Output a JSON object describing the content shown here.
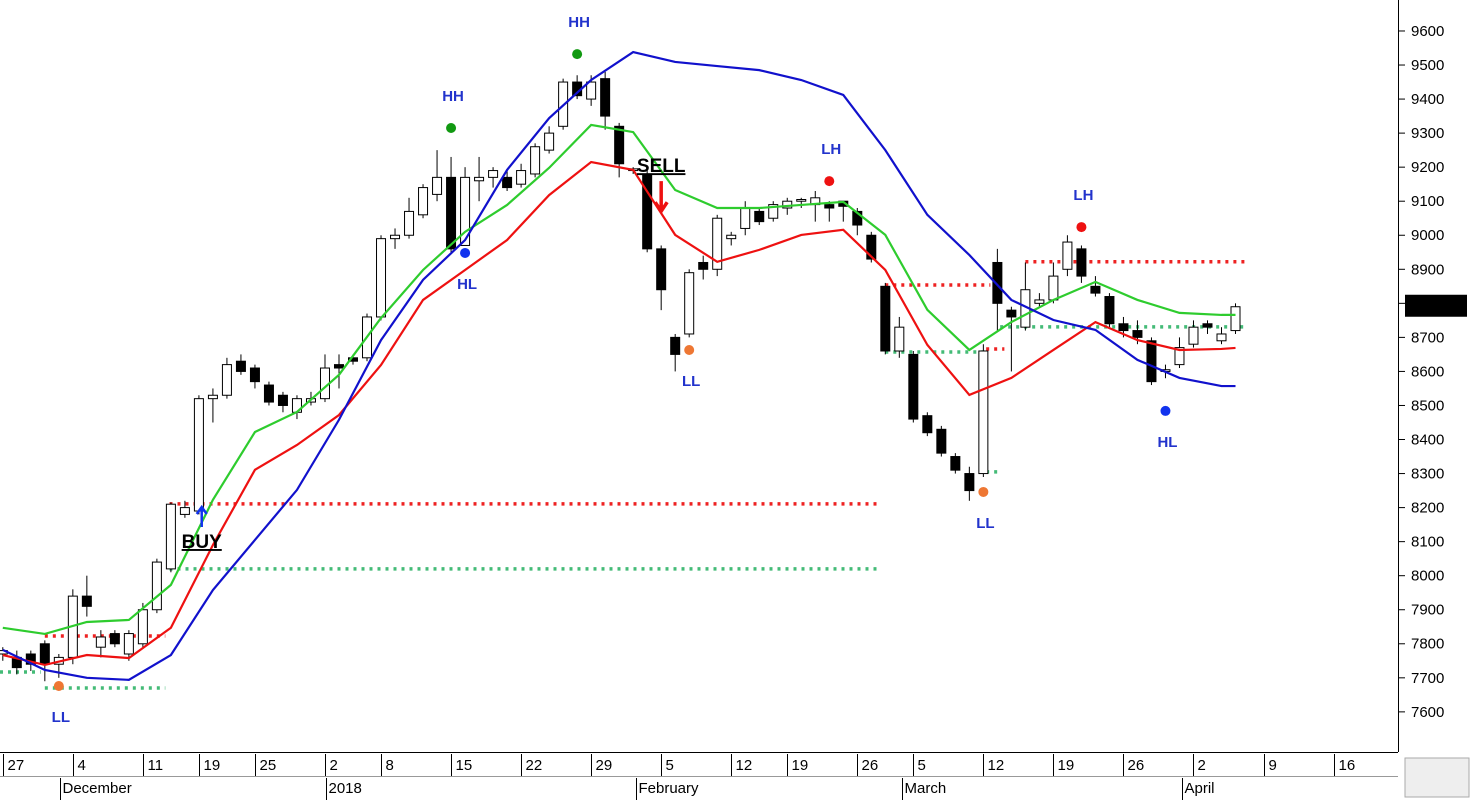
{
  "chart_data": {
    "type": "candlestick",
    "x": [
      0,
      1,
      2,
      3,
      4,
      5,
      6,
      7,
      8,
      9,
      10,
      11,
      12,
      13,
      14,
      15,
      16,
      17,
      18,
      19,
      20,
      21,
      22,
      23,
      24,
      25,
      26,
      27,
      28,
      29,
      30,
      31,
      32,
      33,
      34,
      35,
      36,
      37,
      38,
      39,
      40,
      41,
      42,
      43,
      44,
      45,
      46,
      47,
      48,
      49,
      50,
      51,
      52,
      53,
      54,
      55,
      56,
      57,
      58,
      59,
      60,
      61,
      62,
      63,
      64,
      65,
      66,
      67,
      68,
      69,
      70,
      71,
      72,
      73,
      74,
      75,
      76,
      77,
      78,
      79,
      80,
      81,
      82,
      83,
      84,
      85,
      86,
      87,
      88
    ],
    "open": [
      7770,
      7760,
      7770,
      7800,
      7740,
      7760,
      7940,
      7790,
      7830,
      7770,
      7800,
      7900,
      8020,
      8180,
      8190,
      8520,
      8530,
      8630,
      8610,
      8560,
      8530,
      8480,
      8510,
      8520,
      8620,
      8640,
      8640,
      8760,
      8990,
      9000,
      9060,
      9120,
      9170,
      8970,
      9160,
      9170,
      9170,
      9150,
      9180,
      9250,
      9320,
      9450,
      9400,
      9460,
      9320,
      9190,
      9180,
      8960,
      8700,
      8710,
      8920,
      8900,
      8990,
      9020,
      9070,
      9050,
      9080,
      9100,
      9090,
      9090,
      9100,
      9070,
      9000,
      8850,
      8660,
      8650,
      8470,
      8430,
      8350,
      8300,
      8300,
      8920,
      8780,
      8730,
      8800,
      8810,
      8900,
      8960,
      8850,
      8820,
      8740,
      8720,
      8690,
      8600,
      8620,
      8680,
      8740,
      8690,
      8720
    ],
    "high": [
      7790,
      7780,
      7780,
      7810,
      7770,
      7960,
      8000,
      7840,
      7840,
      7840,
      7920,
      8050,
      8215,
      8220,
      8530,
      8550,
      8640,
      8650,
      8620,
      8570,
      8540,
      8530,
      8540,
      8650,
      8650,
      8650,
      8770,
      9000,
      9020,
      9110,
      9150,
      9250,
      9230,
      9200,
      9230,
      9200,
      9190,
      9210,
      9270,
      9320,
      9460,
      9470,
      9470,
      9480,
      9330,
      9200,
      9200,
      8970,
      8710,
      8900,
      8940,
      9060,
      9010,
      9100,
      9080,
      9100,
      9110,
      9110,
      9130,
      9100,
      9100,
      9080,
      9010,
      8860,
      8760,
      8660,
      8480,
      8440,
      8360,
      8320,
      8680,
      8960,
      8790,
      8920,
      8830,
      8920,
      9000,
      8970,
      8880,
      8830,
      8760,
      8750,
      8700,
      8620,
      8700,
      8750,
      8750,
      8730,
      8800
    ],
    "low": [
      7750,
      7710,
      7720,
      7690,
      7700,
      7740,
      7880,
      7760,
      7790,
      7750,
      7790,
      7890,
      8010,
      8170,
      8180,
      8450,
      8520,
      8590,
      8550,
      8500,
      8480,
      8460,
      8500,
      8510,
      8550,
      8620,
      8630,
      8750,
      8960,
      8990,
      9050,
      9100,
      8950,
      8990,
      9100,
      9140,
      9130,
      9140,
      9170,
      9240,
      9310,
      9400,
      9380,
      9310,
      9170,
      9180,
      8950,
      8780,
      8600,
      8700,
      8870,
      8880,
      8970,
      9000,
      9030,
      9040,
      9060,
      9080,
      9040,
      9040,
      9040,
      9000,
      8920,
      8650,
      8640,
      8450,
      8410,
      8350,
      8300,
      8220,
      8290,
      8720,
      8600,
      8720,
      8790,
      8800,
      8880,
      8860,
      8820,
      8730,
      8700,
      8680,
      8560,
      8580,
      8610,
      8670,
      8710,
      8680,
      8710
    ],
    "close": [
      7780,
      7730,
      7740,
      7740,
      7760,
      7940,
      7910,
      7820,
      7800,
      7830,
      7900,
      8040,
      8210,
      8200,
      8520,
      8530,
      8620,
      8600,
      8570,
      8510,
      8500,
      8520,
      8520,
      8610,
      8610,
      8630,
      8760,
      8990,
      9000,
      9070,
      9140,
      9170,
      8960,
      9170,
      9170,
      9190,
      9140,
      9190,
      9260,
      9300,
      9450,
      9410,
      9450,
      9350,
      9210,
      9195,
      8960,
      8840,
      8650,
      8890,
      8900,
      9050,
      9000,
      9080,
      9040,
      9090,
      9100,
      9105,
      9110,
      9080,
      9085,
      9030,
      8930,
      8660,
      8730,
      8460,
      8420,
      8360,
      8310,
      8250,
      8660,
      8800,
      8760,
      8840,
      8810,
      8880,
      8980,
      8880,
      8830,
      8740,
      8720,
      8700,
      8570,
      8605,
      8670,
      8730,
      8730,
      8710,
      8790
    ],
    "up_color": "#ffffff",
    "down_color": "#000000",
    "series": [
      {
        "color": "#2ecc2e",
        "x": [
          0,
          3,
          6,
          9,
          12,
          15,
          18,
          21,
          24,
          27,
          30,
          33,
          36,
          39,
          42,
          45,
          48,
          51,
          54,
          57,
          60,
          63,
          66,
          69,
          72,
          75,
          78,
          81,
          84,
          87,
          88
        ],
        "values": [
          7847,
          7829,
          7864,
          7870,
          7973,
          8223,
          8422,
          8481,
          8590,
          8757,
          8898,
          9010,
          9089,
          9198,
          9324,
          9303,
          9133,
          9080,
          9080,
          9089,
          9098,
          9001,
          8781,
          8663,
          8745,
          8810,
          8863,
          8810,
          8772,
          8766,
          8766
        ]
      },
      {
        "color": "#ee1111",
        "x": [
          0,
          3,
          6,
          9,
          12,
          15,
          18,
          21,
          24,
          27,
          30,
          33,
          36,
          39,
          42,
          45,
          48,
          51,
          54,
          57,
          60,
          63,
          66,
          69,
          72,
          75,
          78,
          81,
          84,
          87,
          88
        ],
        "values": [
          7767,
          7738,
          7767,
          7758,
          7847,
          8090,
          8311,
          8384,
          8472,
          8619,
          8810,
          8898,
          8986,
          9118,
          9215,
          9192,
          9001,
          8922,
          8957,
          9001,
          9016,
          8898,
          8678,
          8531,
          8581,
          8663,
          8745,
          8692,
          8663,
          8666,
          8669
        ]
      },
      {
        "color": "#1111cc",
        "x": [
          0,
          3,
          6,
          9,
          12,
          15,
          18,
          21,
          24,
          27,
          30,
          33,
          36,
          39,
          42,
          45,
          48,
          51,
          54,
          57,
          60,
          63,
          66,
          69,
          72,
          75,
          78,
          81,
          84,
          87,
          88
        ],
        "values": [
          7782,
          7723,
          7700,
          7694,
          7767,
          7958,
          8105,
          8252,
          8458,
          8692,
          8869,
          8986,
          9192,
          9344,
          9456,
          9538,
          9509,
          9497,
          9485,
          9456,
          9412,
          9250,
          9060,
          8942,
          8810,
          8751,
          8722,
          8634,
          8581,
          8557,
          8557
        ]
      }
    ],
    "levels": [
      {
        "color": "#ee2222",
        "value": 8211,
        "x": [
          11.9,
          62.5
        ]
      },
      {
        "color": "#44bb77",
        "value": 8020,
        "x": [
          11.9,
          62.5
        ]
      },
      {
        "color": "#ee2222",
        "value": 7823,
        "x": [
          3,
          11.6
        ]
      },
      {
        "color": "#44bb77",
        "value": 7670,
        "x": [
          3,
          11.6
        ]
      },
      {
        "color": "#44bb77",
        "value": 7717,
        "x": [
          -0.2,
          2.7
        ]
      },
      {
        "color": "#ee2222",
        "value": 8854,
        "x": [
          63,
          70.5
        ]
      },
      {
        "color": "#44bb77",
        "value": 8657,
        "x": [
          63,
          70.2
        ]
      },
      {
        "color": "#44bb77",
        "value": 8305,
        "x": [
          70.2,
          71.2
        ]
      },
      {
        "color": "#ee2222",
        "value": 8666,
        "x": [
          70.2,
          71.5
        ]
      },
      {
        "color": "#ee2222",
        "value": 8922,
        "x": [
          73,
          88.7
        ]
      },
      {
        "color": "#44bb77",
        "value": 8731,
        "x": [
          71.2,
          88.7
        ]
      }
    ],
    "pivots": [
      {
        "label": "LL",
        "x": 4,
        "value": 7676,
        "color": "#ee7733"
      },
      {
        "label": "HH",
        "x": 32,
        "value": 9315,
        "color": "#119911"
      },
      {
        "label": "HL",
        "x": 33,
        "value": 8948,
        "color": "#1133ee"
      },
      {
        "label": "HH",
        "x": 41,
        "value": 9532,
        "color": "#119911"
      },
      {
        "label": "LL",
        "x": 49,
        "value": 8663,
        "color": "#ee7733"
      },
      {
        "label": "LH",
        "x": 59,
        "value": 9159,
        "color": "#ee1111"
      },
      {
        "label": "LL",
        "x": 70,
        "value": 8246,
        "color": "#ee7733"
      },
      {
        "label": "LH",
        "x": 77,
        "value": 9024,
        "color": "#ee1111"
      },
      {
        "label": "HL",
        "x": 83,
        "value": 8484,
        "color": "#1133ee"
      }
    ],
    "annotations": [
      {
        "text": "BUY",
        "x": 14.2,
        "y": 8096,
        "color": "#1e8b1e",
        "arrow": "up",
        "arrow_color": "#1133ee"
      },
      {
        "text": "SELL",
        "x": 47.0,
        "y": 9200,
        "color": "#1133ee",
        "arrow": "down",
        "arrow_color": "#ee1111"
      }
    ],
    "last_price": 8792.91,
    "xlim": [
      -0.2,
      99.6
    ],
    "ylim": [
      7488,
      9691
    ],
    "yticks": [
      7600,
      7700,
      7800,
      7900,
      8000,
      8100,
      8200,
      8300,
      8400,
      8500,
      8600,
      8700,
      8800,
      8900,
      9000,
      9100,
      9200,
      9300,
      9400,
      9500,
      9600
    ],
    "xticks": [
      {
        "value": 0,
        "label": "27"
      },
      {
        "value": 5,
        "label": "4"
      },
      {
        "value": 10,
        "label": "11"
      },
      {
        "value": 14,
        "label": "19"
      },
      {
        "value": 18,
        "label": "25"
      },
      {
        "value": 23,
        "label": "2"
      },
      {
        "value": 27,
        "label": "8"
      },
      {
        "value": 32,
        "label": "15"
      },
      {
        "value": 37,
        "label": "22"
      },
      {
        "value": 42,
        "label": "29"
      },
      {
        "value": 47,
        "label": "5"
      },
      {
        "value": 52,
        "label": "12"
      },
      {
        "value": 56,
        "label": "19"
      },
      {
        "value": 61,
        "label": "26"
      },
      {
        "value": 65,
        "label": "5"
      },
      {
        "value": 70,
        "label": "12"
      },
      {
        "value": 75,
        "label": "19"
      },
      {
        "value": 80,
        "label": "26"
      },
      {
        "value": 85,
        "label": "2"
      },
      {
        "value": 90,
        "label": "9"
      },
      {
        "value": 95,
        "label": "16"
      }
    ],
    "month_ticks": [
      {
        "value": 4.1,
        "label": "December"
      },
      {
        "value": 23.1,
        "label": "2018"
      },
      {
        "value": 45.2,
        "label": "February"
      },
      {
        "value": 64.2,
        "label": "March"
      },
      {
        "value": 84.2,
        "label": "April"
      }
    ]
  }
}
